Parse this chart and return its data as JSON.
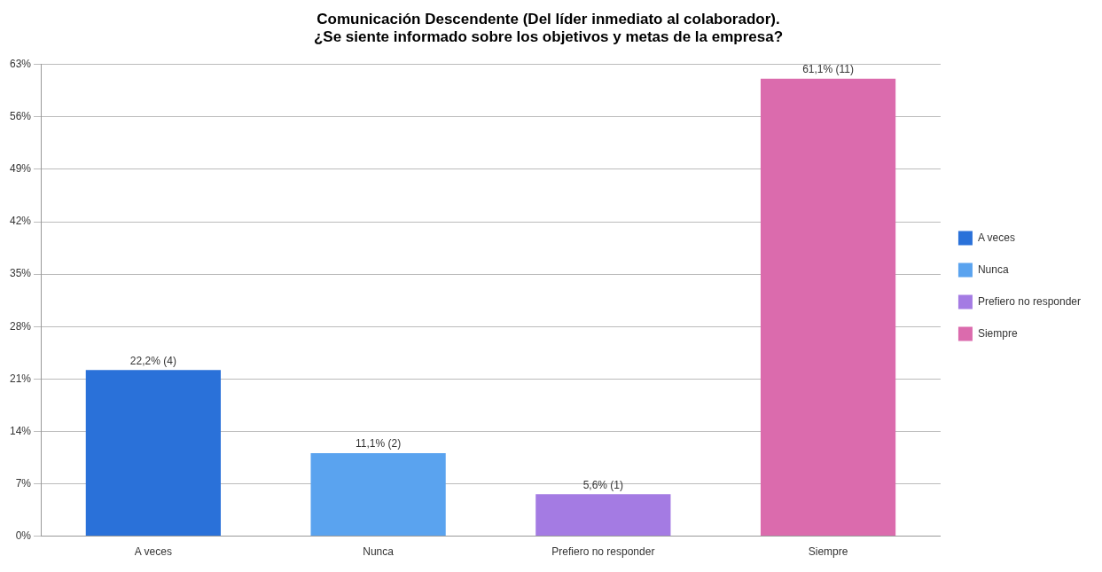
{
  "chart_data": {
    "type": "bar",
    "title": [
      "Comunicación Descendente (Del líder inmediato al colaborador).",
      "¿Se siente informado sobre los objetivos y metas de la empresa?"
    ],
    "categories": [
      "A veces",
      "Nunca",
      "Prefiero no responder",
      "Siempre"
    ],
    "series": [
      {
        "name": "A veces",
        "color": "#2a71d9",
        "values": [
          22.2,
          null,
          null,
          null
        ],
        "value_labels": [
          "22,2% (4)",
          null,
          null,
          null
        ]
      },
      {
        "name": "Nunca",
        "color": "#5aa3ef",
        "values": [
          null,
          11.1,
          null,
          null
        ],
        "value_labels": [
          null,
          "11,1% (2)",
          null,
          null
        ]
      },
      {
        "name": "Prefiero no responder",
        "color": "#a47be3",
        "values": [
          null,
          null,
          5.6,
          null
        ],
        "value_labels": [
          null,
          null,
          "5,6% (1)",
          null
        ]
      },
      {
        "name": "Siempre",
        "color": "#db6bad",
        "values": [
          null,
          null,
          null,
          61.1
        ],
        "value_labels": [
          null,
          null,
          null,
          "61,1% (11)"
        ]
      }
    ],
    "ylim": [
      0,
      63
    ],
    "yticks": [
      {
        "value": 0,
        "label": "0%"
      },
      {
        "value": 7,
        "label": "7%"
      },
      {
        "value": 14,
        "label": "14%"
      },
      {
        "value": 21,
        "label": "21%"
      },
      {
        "value": 28,
        "label": "28%"
      },
      {
        "value": 35,
        "label": "35%"
      },
      {
        "value": 42,
        "label": "42%"
      },
      {
        "value": 49,
        "label": "49%"
      },
      {
        "value": 56,
        "label": "56%"
      },
      {
        "value": 63,
        "label": "63%"
      }
    ],
    "grid": "y",
    "legend": "right"
  }
}
